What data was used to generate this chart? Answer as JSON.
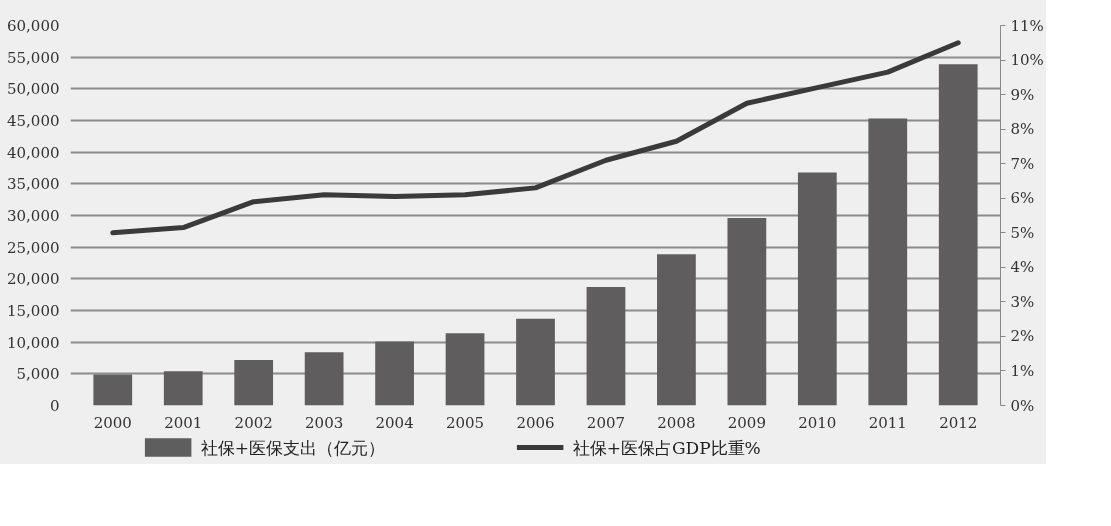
{
  "chart_data": {
    "type": "bar",
    "categories": [
      "2000",
      "2001",
      "2002",
      "2003",
      "2004",
      "2005",
      "2006",
      "2007",
      "2008",
      "2009",
      "2010",
      "2011",
      "2012"
    ],
    "series": [
      {
        "name": "社保+医保支出（亿元）",
        "color": "#5f5d5e",
        "values": [
          4900,
          5400,
          7200,
          8400,
          10100,
          11400,
          13700,
          18700,
          23900,
          29600,
          36800,
          45300,
          53900
        ]
      },
      {
        "name": "社保+医保占GDP比重%",
        "color": "#3a3a3a",
        "type": "line",
        "axis": "y2",
        "values": [
          5.0,
          5.15,
          5.9,
          6.1,
          6.05,
          6.1,
          6.3,
          7.1,
          7.65,
          8.75,
          9.2,
          9.65,
          10.5
        ]
      }
    ],
    "ylim": [
      0,
      60000
    ],
    "yticks": [
      {
        "value": 0,
        "label": "0"
      },
      {
        "value": 5000,
        "label": "5,000"
      },
      {
        "value": 10000,
        "label": "10,000"
      },
      {
        "value": 15000,
        "label": "15,000"
      },
      {
        "value": 20000,
        "label": "20,000"
      },
      {
        "value": 25000,
        "label": "25,000"
      },
      {
        "value": 30000,
        "label": "30,000"
      },
      {
        "value": 35000,
        "label": "35,000"
      },
      {
        "value": 40000,
        "label": "40,000"
      },
      {
        "value": 45000,
        "label": "45,000"
      },
      {
        "value": 50000,
        "label": "50,000"
      },
      {
        "value": 55000,
        "label": "55,000"
      },
      {
        "value": 60000,
        "label": "60,000"
      }
    ],
    "y2lim": [
      0,
      11
    ],
    "y2ticks": [
      {
        "value": 0,
        "label": "0%"
      },
      {
        "value": 1,
        "label": "1%"
      },
      {
        "value": 2,
        "label": "2%"
      },
      {
        "value": 3,
        "label": "3%"
      },
      {
        "value": 4,
        "label": "4%"
      },
      {
        "value": 5,
        "label": "5%"
      },
      {
        "value": 6,
        "label": "6%"
      },
      {
        "value": 7,
        "label": "7%"
      },
      {
        "value": 8,
        "label": "8%"
      },
      {
        "value": 9,
        "label": "9%"
      },
      {
        "value": 10,
        "label": "10%"
      },
      {
        "value": 11,
        "label": "11%"
      }
    ],
    "grid": "y",
    "legend": "bottom",
    "line_style": "solid"
  }
}
